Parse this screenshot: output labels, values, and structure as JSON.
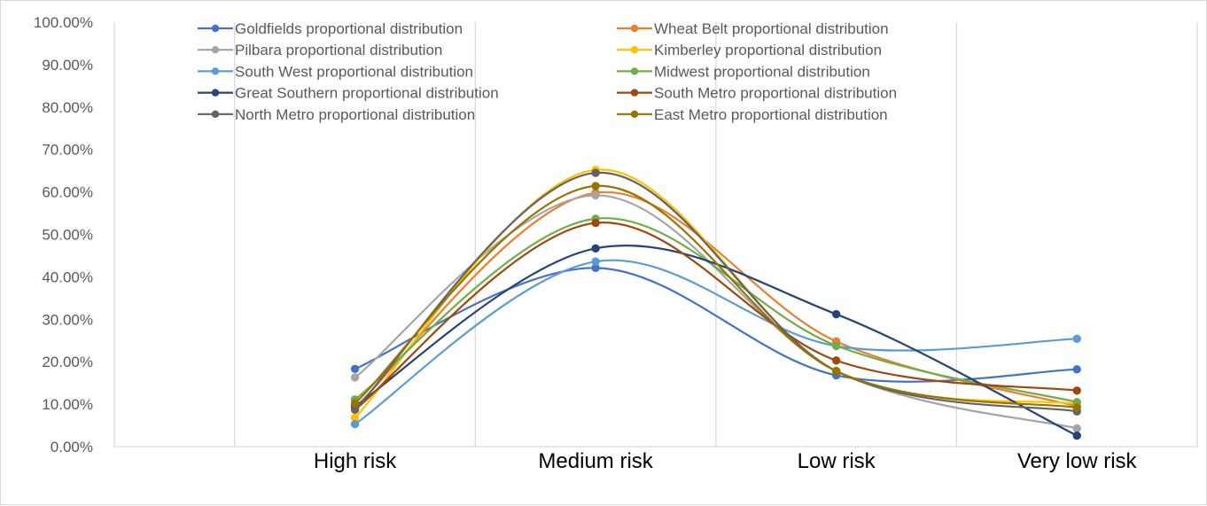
{
  "chart_data": {
    "type": "line",
    "smooth": true,
    "title": "",
    "xlabel": "",
    "ylabel": "",
    "categories": [
      "High risk",
      "Medium risk",
      "Low risk",
      "Very low risk"
    ],
    "ylim": [
      0,
      1
    ],
    "yticks": [
      "0.00%",
      "10.00%",
      "20.00%",
      "30.00%",
      "40.00%",
      "50.00%",
      "60.00%",
      "70.00%",
      "80.00%",
      "90.00%",
      "100.00%"
    ],
    "grid": "vertical",
    "legend_position": "top",
    "series": [
      {
        "name": "Goldfields proportional distribution",
        "color": "#4472C4",
        "values": [
          0.183,
          0.421,
          0.168,
          0.182
        ]
      },
      {
        "name": "Wheat Belt proportional distribution",
        "color": "#ED7D31",
        "values": [
          0.092,
          0.598,
          0.248,
          0.095
        ]
      },
      {
        "name": "Pilbara proportional distribution",
        "color": "#A5A5A5",
        "values": [
          0.163,
          0.592,
          0.178,
          0.043
        ]
      },
      {
        "name": "Kimberley proportional distribution",
        "color": "#FFC000",
        "values": [
          0.068,
          0.652,
          0.178,
          0.101
        ]
      },
      {
        "name": "South West proportional distribution",
        "color": "#5B9BD5",
        "values": [
          0.053,
          0.436,
          0.237,
          0.254
        ]
      },
      {
        "name": "Midwest proportional distribution",
        "color": "#70AD47",
        "values": [
          0.111,
          0.537,
          0.238,
          0.105
        ]
      },
      {
        "name": "Great Southern proportional distribution",
        "color": "#264478",
        "values": [
          0.095,
          0.467,
          0.312,
          0.026
        ]
      },
      {
        "name": "South Metro proportional distribution",
        "color": "#9E480E",
        "values": [
          0.087,
          0.527,
          0.203,
          0.132
        ]
      },
      {
        "name": "North Metro proportional distribution",
        "color": "#636363",
        "values": [
          0.088,
          0.645,
          0.178,
          0.083
        ]
      },
      {
        "name": "East Metro proportional distribution",
        "color": "#997300",
        "values": [
          0.102,
          0.614,
          0.178,
          0.092
        ]
      }
    ]
  }
}
